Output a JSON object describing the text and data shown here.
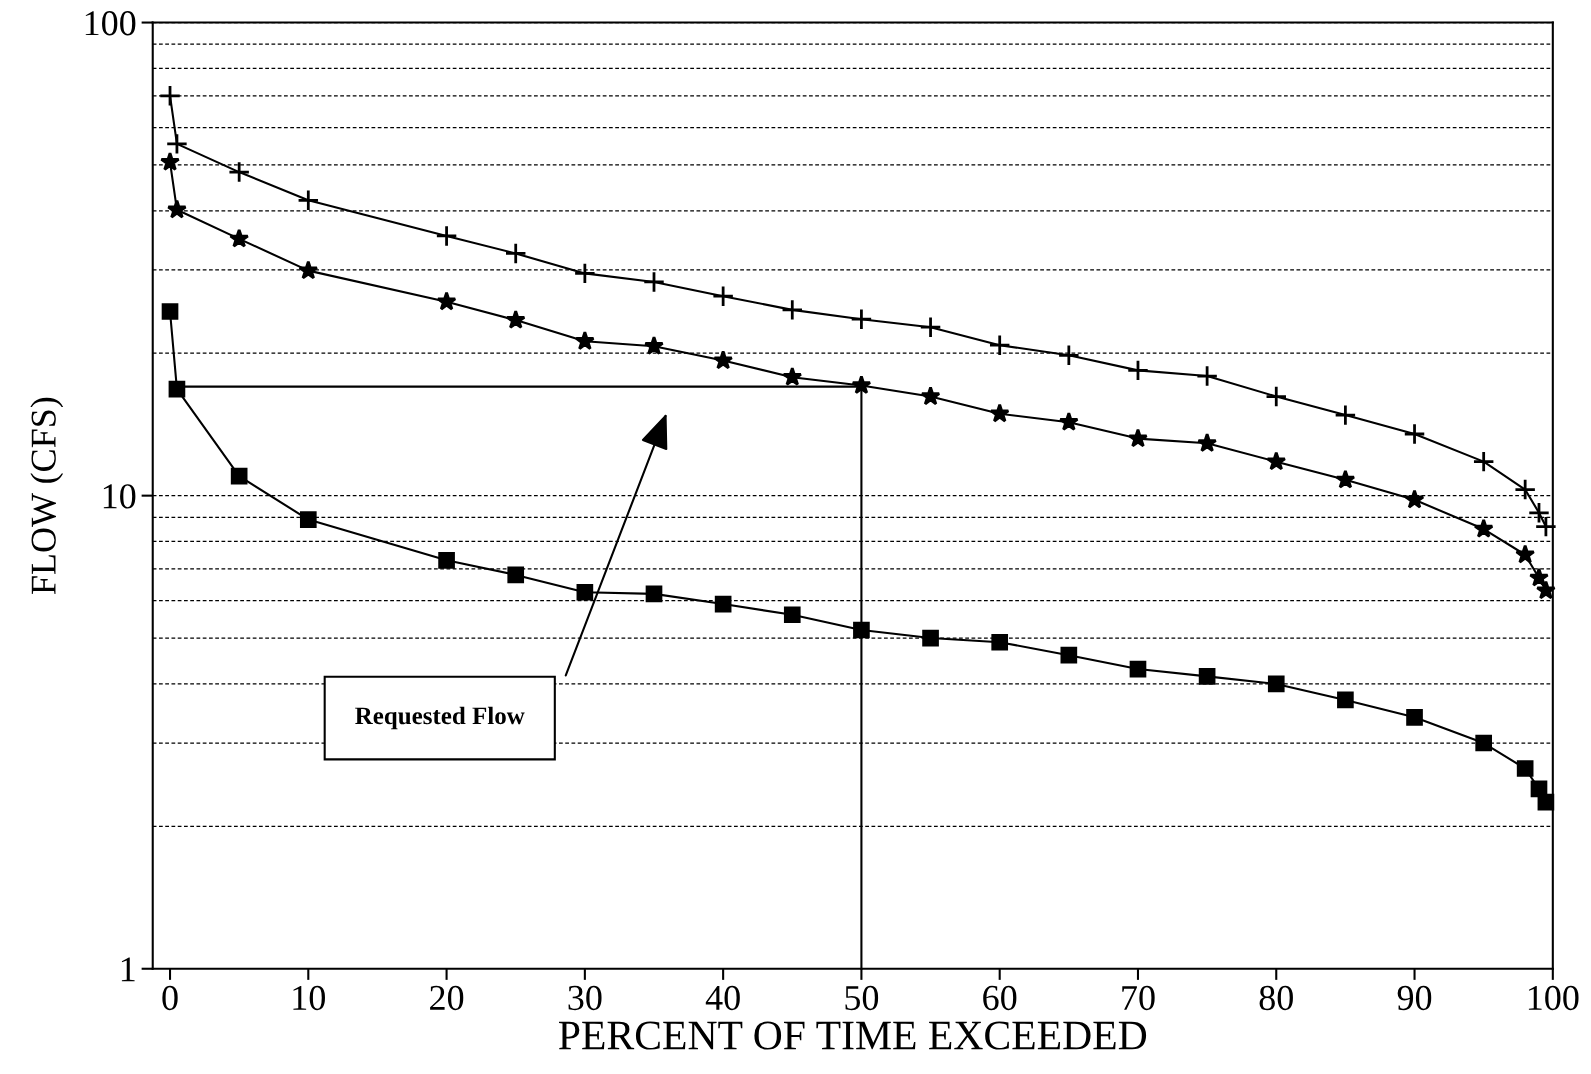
{
  "chart_data": {
    "type": "line",
    "xlabel": "PERCENT OF TIME EXCEEDED",
    "ylabel": "FLOW (CFS)",
    "xlim": [
      -1.25,
      100
    ],
    "xticks": [
      0,
      10,
      20,
      30,
      40,
      50,
      60,
      70,
      80,
      90,
      100
    ],
    "ylim": [
      1,
      100
    ],
    "yticks": [
      1,
      10,
      100
    ],
    "log": "y",
    "grid": "y",
    "series": [
      {
        "color": "#000000",
        "marker": "cross",
        "x": [
          0,
          0.5,
          5,
          10,
          20,
          25,
          30,
          35,
          40,
          45,
          50,
          55,
          60,
          65,
          70,
          75,
          80,
          85,
          90,
          95,
          98,
          99,
          99.5
        ],
        "values": [
          70,
          55.4,
          48.3,
          42.1,
          35.4,
          32.5,
          29.5,
          28.3,
          26.4,
          24.7,
          23.6,
          22.7,
          20.8,
          19.8,
          18.4,
          17.9,
          16.2,
          14.8,
          13.5,
          11.8,
          10.3,
          9.2,
          8.6
        ]
      },
      {
        "color": "#000000",
        "marker": "star",
        "x": [
          0,
          0.5,
          5,
          10,
          20,
          25,
          30,
          35,
          40,
          45,
          50,
          55,
          60,
          65,
          70,
          75,
          80,
          85,
          90,
          95,
          98,
          99,
          99.5
        ],
        "values": [
          50.7,
          40.2,
          34.9,
          29.9,
          25.7,
          23.5,
          21.2,
          20.7,
          19.3,
          17.8,
          17.1,
          16.2,
          14.9,
          14.3,
          13.2,
          12.9,
          11.8,
          10.8,
          9.8,
          8.5,
          7.5,
          6.7,
          6.3
        ]
      },
      {
        "color": "#000000",
        "marker": "square",
        "x": [
          0,
          0.5,
          5,
          10,
          20,
          25,
          30,
          35,
          40,
          45,
          50,
          55,
          60,
          65,
          70,
          75,
          80,
          85,
          90,
          95,
          98,
          99,
          99.5
        ],
        "values": [
          24.5,
          16.8,
          11.0,
          8.9,
          7.3,
          6.8,
          6.25,
          6.2,
          5.9,
          5.6,
          5.2,
          5.0,
          4.9,
          4.6,
          4.3,
          4.15,
          4.0,
          3.7,
          3.4,
          3.0,
          2.65,
          2.4,
          2.25
        ]
      },
      {
        "color": "#000000",
        "marker": "none",
        "x": [
          0.5,
          50,
          50
        ],
        "values": [
          17,
          17,
          1
        ]
      }
    ],
    "annotations": [
      "Requested Flow"
    ]
  }
}
